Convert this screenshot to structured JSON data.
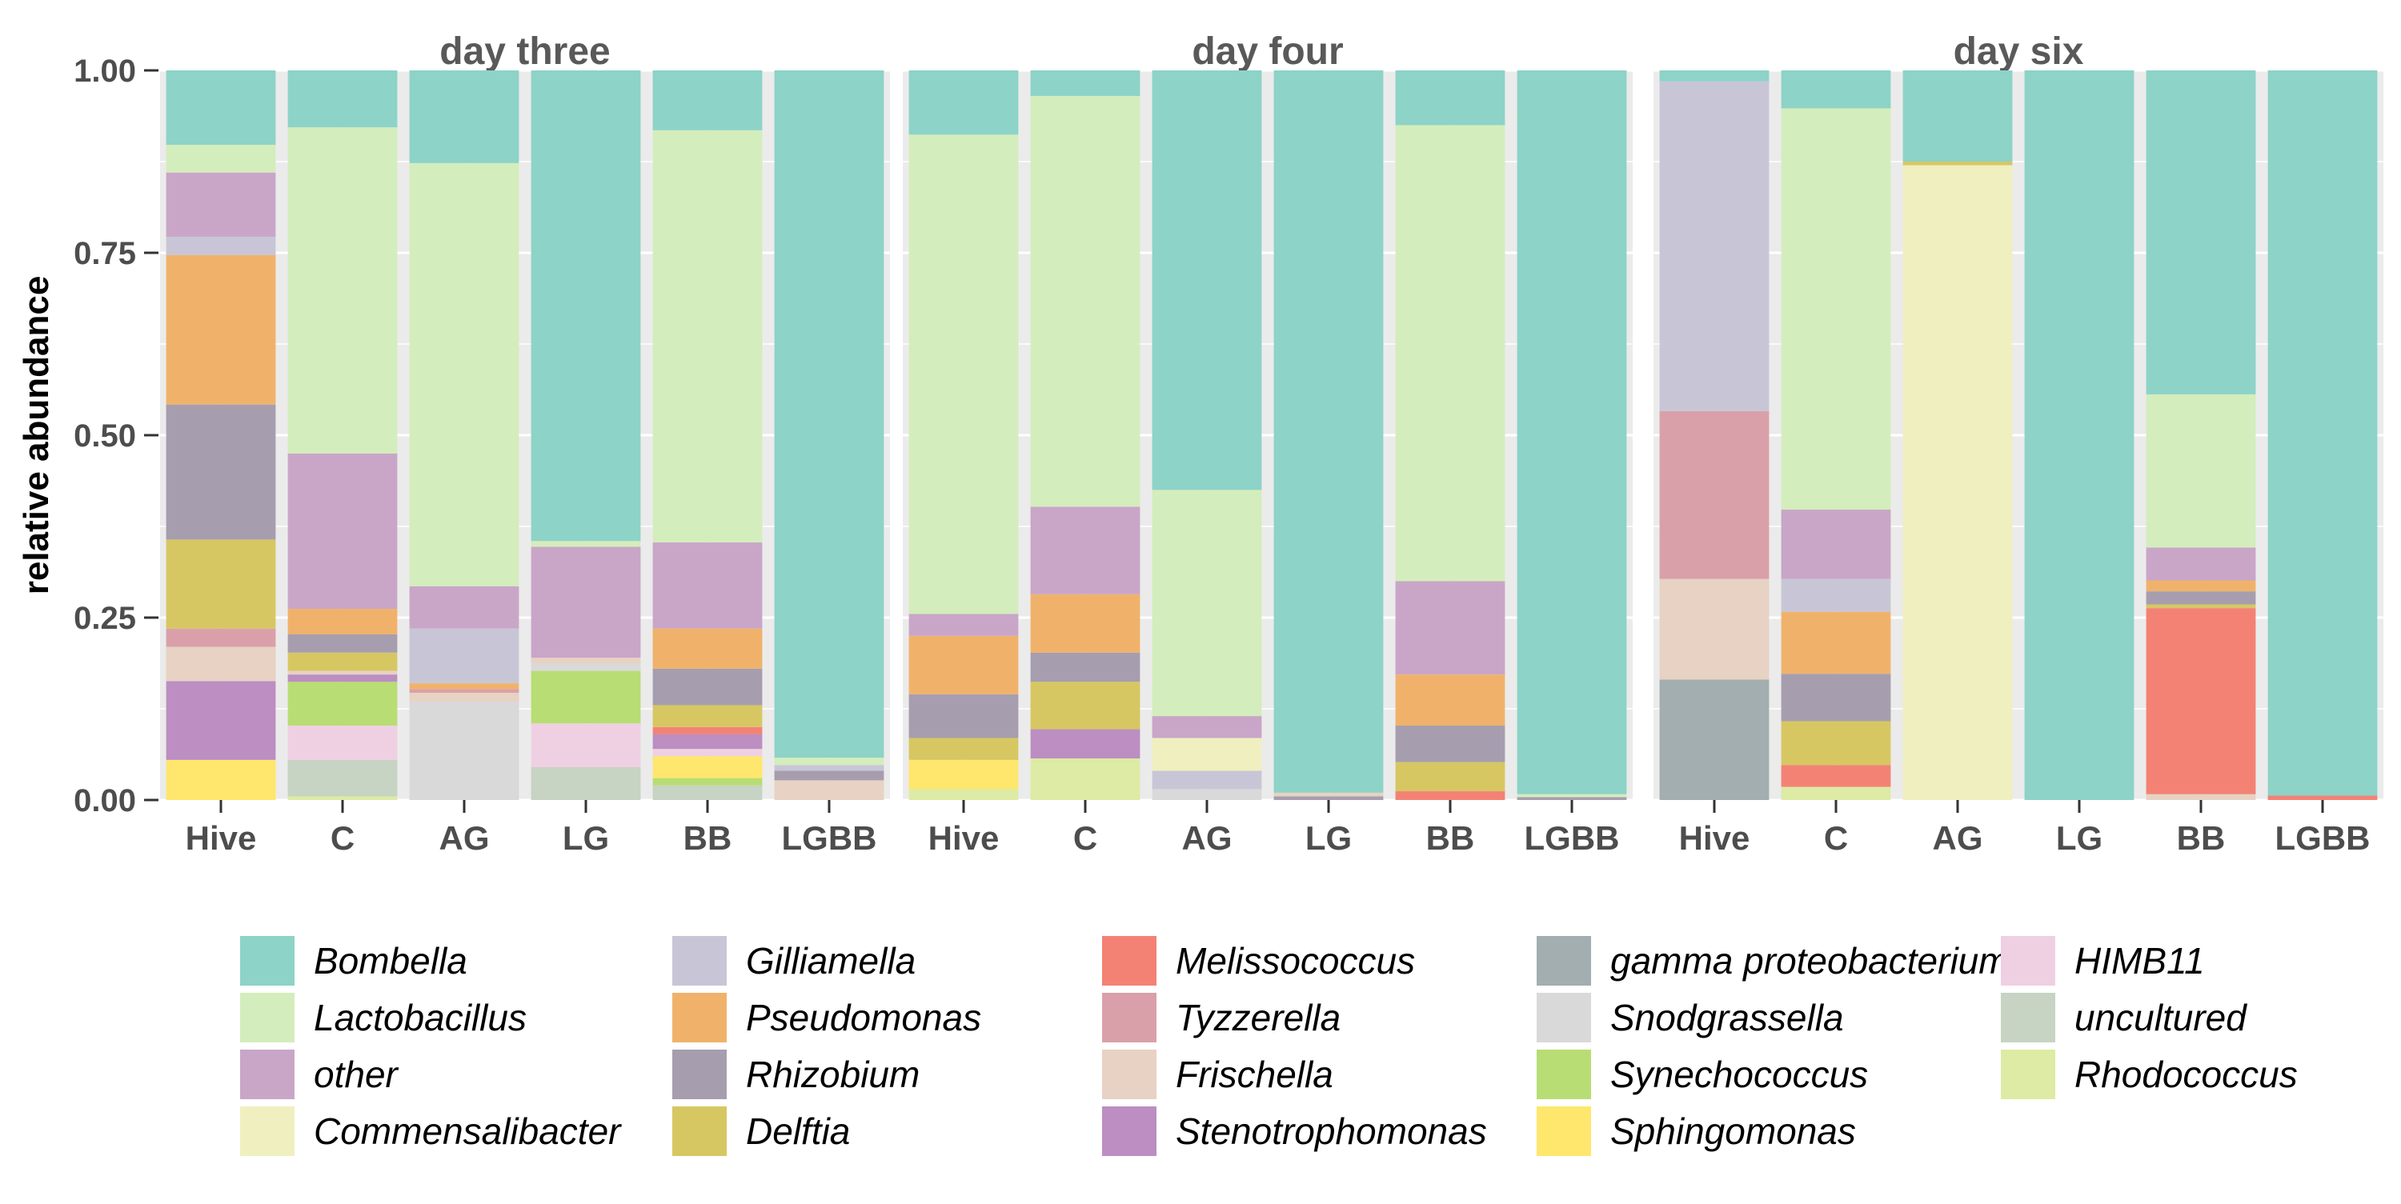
{
  "chart_data": {
    "type": "bar",
    "stacked": true,
    "ylabel": "relative abundance",
    "xlabel": "",
    "ylim": [
      0,
      1
    ],
    "yticks": [
      "0.00",
      "0.25",
      "0.50",
      "0.75",
      "1.00"
    ],
    "ytick_values": [
      0,
      0.25,
      0.5,
      0.75,
      1.0
    ],
    "categories": [
      "Hive",
      "C",
      "AG",
      "LG",
      "BB",
      "LGBB"
    ],
    "legend_position": "bottom",
    "grid": true,
    "genera": [
      {
        "name": "Bombella",
        "color": "#8DD3C7"
      },
      {
        "name": "Lactobacillus",
        "color": "#D4EDBC"
      },
      {
        "name": "other",
        "color": "#C9A6C8"
      },
      {
        "name": "Commensalibacter",
        "color": "#F0EFC0"
      },
      {
        "name": "Gilliamella",
        "color": "#C8C6D6"
      },
      {
        "name": "Pseudomonas",
        "color": "#F0B26B"
      },
      {
        "name": "Rhizobium",
        "color": "#A69EAF"
      },
      {
        "name": "Delftia",
        "color": "#D7C762"
      },
      {
        "name": "Melissococcus",
        "color": "#F38275"
      },
      {
        "name": "Tyzzerella",
        "color": "#DAA0A9"
      },
      {
        "name": "Frischella",
        "color": "#E7D2C3"
      },
      {
        "name": "Stenotrophomonas",
        "color": "#BC8EC2"
      },
      {
        "name": "gamma proteobacterium",
        "color": "#A2AEB0"
      },
      {
        "name": "Snodgrassella",
        "color": "#D9D9D9"
      },
      {
        "name": "Synechococcus",
        "color": "#B8DD74"
      },
      {
        "name": "Sphingomonas",
        "color": "#FFE66C"
      },
      {
        "name": "HIMB11",
        "color": "#EFD0E2"
      },
      {
        "name": "uncultured",
        "color": "#C7D3C3"
      },
      {
        "name": "Rhodococcus",
        "color": "#DDEBA4"
      }
    ],
    "panels": [
      {
        "title": "day three",
        "bars": [
          {
            "category": "Hive",
            "segments": [
              {
                "genus": "Sphingomonas",
                "value": 0.055
              },
              {
                "genus": "Stenotrophomonas",
                "value": 0.108
              },
              {
                "genus": "Frischella",
                "value": 0.047
              },
              {
                "genus": "Tyzzerella",
                "value": 0.025
              },
              {
                "genus": "Delftia",
                "value": 0.122
              },
              {
                "genus": "Rhizobium",
                "value": 0.185
              },
              {
                "genus": "Pseudomonas",
                "value": 0.205
              },
              {
                "genus": "Gilliamella",
                "value": 0.025
              },
              {
                "genus": "other",
                "value": 0.088
              },
              {
                "genus": "Lactobacillus",
                "value": 0.038
              },
              {
                "genus": "Bombella",
                "value": 0.102
              }
            ]
          },
          {
            "category": "C",
            "segments": [
              {
                "genus": "Rhodococcus",
                "value": 0.005
              },
              {
                "genus": "uncultured",
                "value": 0.05
              },
              {
                "genus": "HIMB11",
                "value": 0.047
              },
              {
                "genus": "Synechococcus",
                "value": 0.06
              },
              {
                "genus": "Stenotrophomonas",
                "value": 0.01
              },
              {
                "genus": "Frischella",
                "value": 0.005
              },
              {
                "genus": "Delftia",
                "value": 0.025
              },
              {
                "genus": "Rhizobium",
                "value": 0.025
              },
              {
                "genus": "Pseudomonas",
                "value": 0.035
              },
              {
                "genus": "other",
                "value": 0.213
              },
              {
                "genus": "Lactobacillus",
                "value": 0.447
              },
              {
                "genus": "Bombella",
                "value": 0.078
              }
            ]
          },
          {
            "category": "AG",
            "segments": [
              {
                "genus": "Snodgrassella",
                "value": 0.135
              },
              {
                "genus": "Frischella",
                "value": 0.012
              },
              {
                "genus": "Tyzzerella",
                "value": 0.005
              },
              {
                "genus": "Pseudomonas",
                "value": 0.008
              },
              {
                "genus": "Gilliamella",
                "value": 0.075
              },
              {
                "genus": "other",
                "value": 0.058
              },
              {
                "genus": "Lactobacillus",
                "value": 0.58
              },
              {
                "genus": "Bombella",
                "value": 0.127
              }
            ]
          },
          {
            "category": "LG",
            "segments": [
              {
                "genus": "uncultured",
                "value": 0.045
              },
              {
                "genus": "HIMB11",
                "value": 0.06
              },
              {
                "genus": "Synechococcus",
                "value": 0.072
              },
              {
                "genus": "Snodgrassella",
                "value": 0.01
              },
              {
                "genus": "Frischella",
                "value": 0.008
              },
              {
                "genus": "other",
                "value": 0.152
              },
              {
                "genus": "Lactobacillus",
                "value": 0.008
              },
              {
                "genus": "Bombella",
                "value": 0.645
              }
            ]
          },
          {
            "category": "BB",
            "segments": [
              {
                "genus": "uncultured",
                "value": 0.02
              },
              {
                "genus": "Synechococcus",
                "value": 0.01
              },
              {
                "genus": "Sphingomonas",
                "value": 0.03
              },
              {
                "genus": "HIMB11",
                "value": 0.01
              },
              {
                "genus": "Stenotrophomonas",
                "value": 0.02
              },
              {
                "genus": "Melissococcus",
                "value": 0.01
              },
              {
                "genus": "Delftia",
                "value": 0.03
              },
              {
                "genus": "Rhizobium",
                "value": 0.05
              },
              {
                "genus": "Pseudomonas",
                "value": 0.055
              },
              {
                "genus": "other",
                "value": 0.118
              },
              {
                "genus": "Lactobacillus",
                "value": 0.565
              },
              {
                "genus": "Bombella",
                "value": 0.082
              }
            ]
          },
          {
            "category": "LGBB",
            "segments": [
              {
                "genus": "Frischella",
                "value": 0.027
              },
              {
                "genus": "Rhizobium",
                "value": 0.013
              },
              {
                "genus": "Gilliamella",
                "value": 0.008
              },
              {
                "genus": "Lactobacillus",
                "value": 0.01
              },
              {
                "genus": "Bombella",
                "value": 0.942
              }
            ]
          }
        ]
      },
      {
        "title": "day four",
        "bars": [
          {
            "category": "Hive",
            "segments": [
              {
                "genus": "Rhodococcus",
                "value": 0.015
              },
              {
                "genus": "Sphingomonas",
                "value": 0.04
              },
              {
                "genus": "Delftia",
                "value": 0.03
              },
              {
                "genus": "Rhizobium",
                "value": 0.06
              },
              {
                "genus": "Pseudomonas",
                "value": 0.08
              },
              {
                "genus": "other",
                "value": 0.03
              },
              {
                "genus": "Lactobacillus",
                "value": 0.657
              },
              {
                "genus": "Bombella",
                "value": 0.088
              }
            ]
          },
          {
            "category": "C",
            "segments": [
              {
                "genus": "Rhodococcus",
                "value": 0.057
              },
              {
                "genus": "Stenotrophomonas",
                "value": 0.04
              },
              {
                "genus": "Delftia",
                "value": 0.065
              },
              {
                "genus": "Rhizobium",
                "value": 0.04
              },
              {
                "genus": "Pseudomonas",
                "value": 0.08
              },
              {
                "genus": "other",
                "value": 0.12
              },
              {
                "genus": "Lactobacillus",
                "value": 0.563
              },
              {
                "genus": "Bombella",
                "value": 0.035
              }
            ]
          },
          {
            "category": "AG",
            "segments": [
              {
                "genus": "Snodgrassella",
                "value": 0.015
              },
              {
                "genus": "Gilliamella",
                "value": 0.025
              },
              {
                "genus": "Commensalibacter",
                "value": 0.045
              },
              {
                "genus": "other",
                "value": 0.03
              },
              {
                "genus": "Lactobacillus",
                "value": 0.31
              },
              {
                "genus": "Bombella",
                "value": 0.575
              }
            ]
          },
          {
            "category": "LG",
            "segments": [
              {
                "genus": "Rhizobium",
                "value": 0.005
              },
              {
                "genus": "Frischella",
                "value": 0.005
              },
              {
                "genus": "Bombella",
                "value": 0.99
              }
            ]
          },
          {
            "category": "BB",
            "segments": [
              {
                "genus": "Melissococcus",
                "value": 0.012
              },
              {
                "genus": "Delftia",
                "value": 0.04
              },
              {
                "genus": "Rhizobium",
                "value": 0.05
              },
              {
                "genus": "Pseudomonas",
                "value": 0.07
              },
              {
                "genus": "other",
                "value": 0.128
              },
              {
                "genus": "Lactobacillus",
                "value": 0.625
              },
              {
                "genus": "Bombella",
                "value": 0.075
              }
            ]
          },
          {
            "category": "LGBB",
            "segments": [
              {
                "genus": "Rhizobium",
                "value": 0.004
              },
              {
                "genus": "Lactobacillus",
                "value": 0.004
              },
              {
                "genus": "Bombella",
                "value": 0.992
              }
            ]
          }
        ]
      },
      {
        "title": "day six",
        "bars": [
          {
            "category": "Hive",
            "segments": [
              {
                "genus": "gamma proteobacterium",
                "value": 0.165
              },
              {
                "genus": "Frischella",
                "value": 0.138
              },
              {
                "genus": "Tyzzerella",
                "value": 0.23
              },
              {
                "genus": "Gilliamella",
                "value": 0.452
              },
              {
                "genus": "Bombella",
                "value": 0.015
              }
            ]
          },
          {
            "category": "C",
            "segments": [
              {
                "genus": "Rhodococcus",
                "value": 0.018
              },
              {
                "genus": "Melissococcus",
                "value": 0.03
              },
              {
                "genus": "Delftia",
                "value": 0.06
              },
              {
                "genus": "Rhizobium",
                "value": 0.065
              },
              {
                "genus": "Pseudomonas",
                "value": 0.085
              },
              {
                "genus": "Gilliamella",
                "value": 0.045
              },
              {
                "genus": "other",
                "value": 0.095
              },
              {
                "genus": "Lactobacillus",
                "value": 0.55
              },
              {
                "genus": "Bombella",
                "value": 0.052
              }
            ]
          },
          {
            "category": "AG",
            "segments": [
              {
                "genus": "Commensalibacter",
                "value": 0.87
              },
              {
                "genus": "Delftia",
                "value": 0.005
              },
              {
                "genus": "Bombella",
                "value": 0.125
              }
            ]
          },
          {
            "category": "LG",
            "segments": [
              {
                "genus": "Bombella",
                "value": 1.0
              }
            ]
          },
          {
            "category": "BB",
            "segments": [
              {
                "genus": "Frischella",
                "value": 0.008
              },
              {
                "genus": "Melissococcus",
                "value": 0.255
              },
              {
                "genus": "Delftia",
                "value": 0.005
              },
              {
                "genus": "Rhizobium",
                "value": 0.018
              },
              {
                "genus": "Pseudomonas",
                "value": 0.015
              },
              {
                "genus": "other",
                "value": 0.045
              },
              {
                "genus": "Lactobacillus",
                "value": 0.21
              },
              {
                "genus": "Bombella",
                "value": 0.444
              }
            ]
          },
          {
            "category": "LGBB",
            "segments": [
              {
                "genus": "Melissococcus",
                "value": 0.006
              },
              {
                "genus": "Bombella",
                "value": 0.994
              }
            ]
          }
        ]
      }
    ]
  }
}
